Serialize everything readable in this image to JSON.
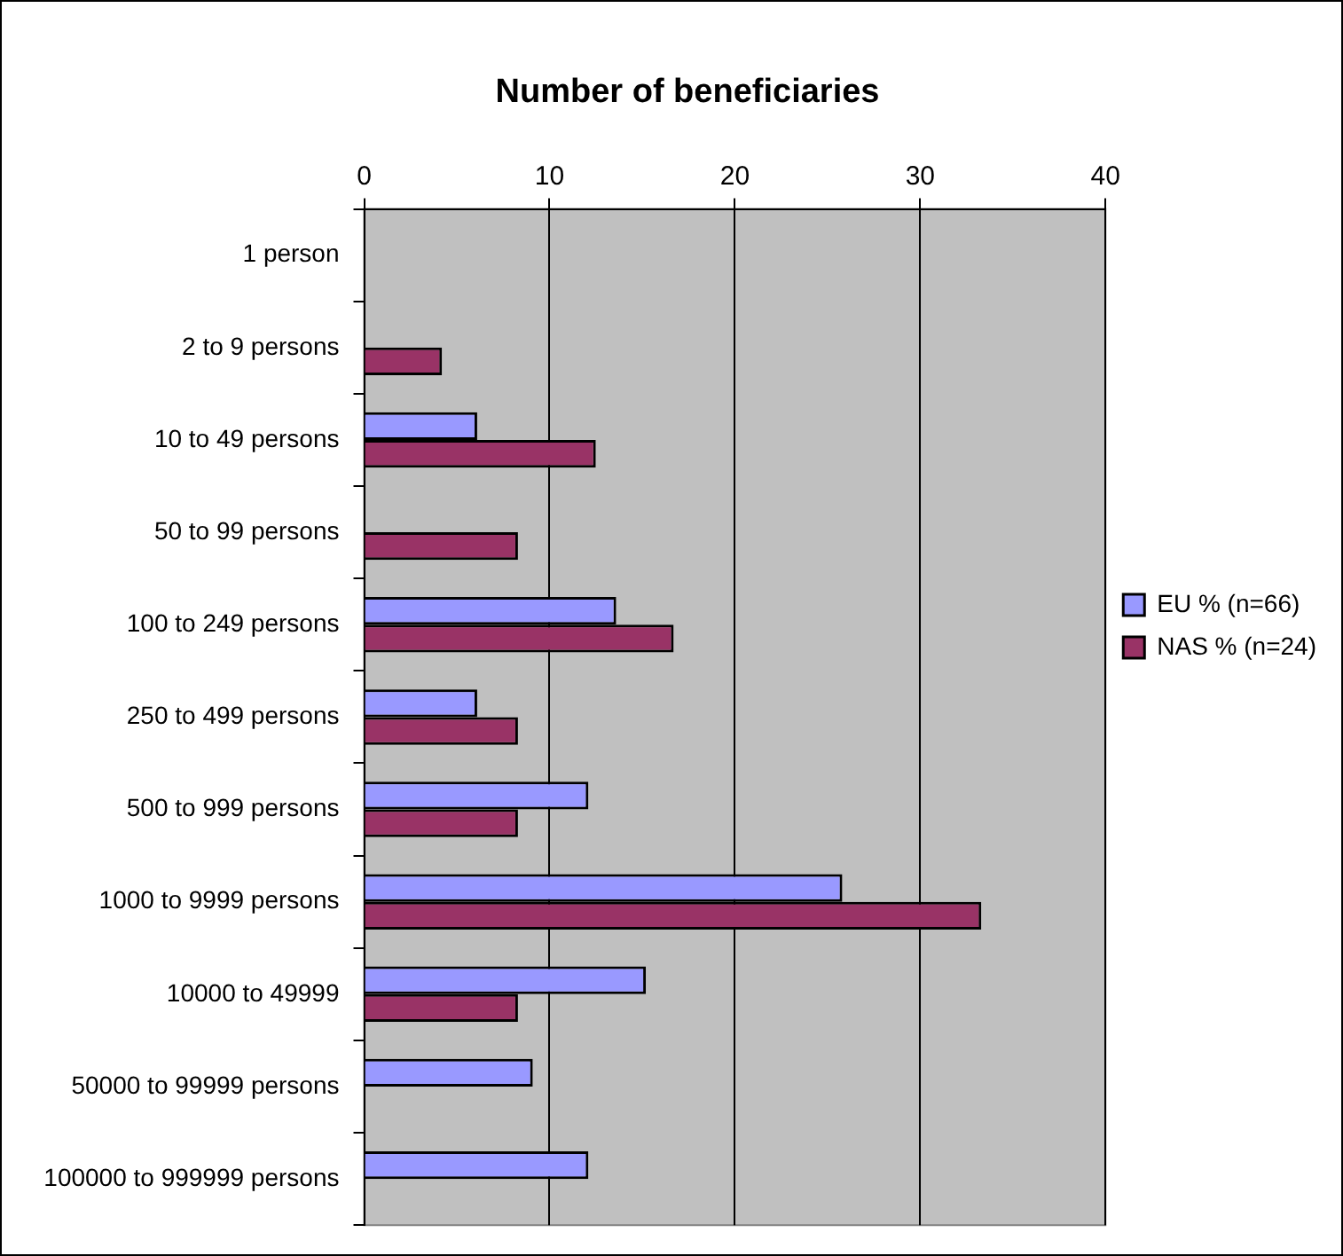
{
  "chart_data": {
    "type": "bar",
    "orientation": "horizontal",
    "title": "Number of beneficiaries",
    "categories": [
      "1 person",
      "2 to 9 persons",
      "10 to 49 persons",
      "50 to 99 persons",
      "100 to 249 persons",
      "250 to 499 persons",
      "500 to 999 persons",
      "1000 to 9999 persons",
      "10000 to 49999",
      "50000 to 99999 persons",
      "100000 to 999999 persons"
    ],
    "series": [
      {
        "name": "EU % (n=66)",
        "color": "#9999ff",
        "values": [
          null,
          null,
          6.1,
          null,
          13.6,
          6.1,
          12.1,
          25.8,
          15.2,
          9.1,
          12.1
        ]
      },
      {
        "name": "NAS % (n=24)",
        "color": "#993366",
        "values": [
          null,
          4.2,
          12.5,
          8.3,
          16.7,
          8.3,
          8.3,
          33.3,
          8.3,
          null,
          null
        ]
      }
    ],
    "xlim": [
      0,
      40
    ],
    "xticks": [
      0,
      10,
      20,
      30,
      40
    ],
    "grid": "x",
    "legend": "right"
  }
}
